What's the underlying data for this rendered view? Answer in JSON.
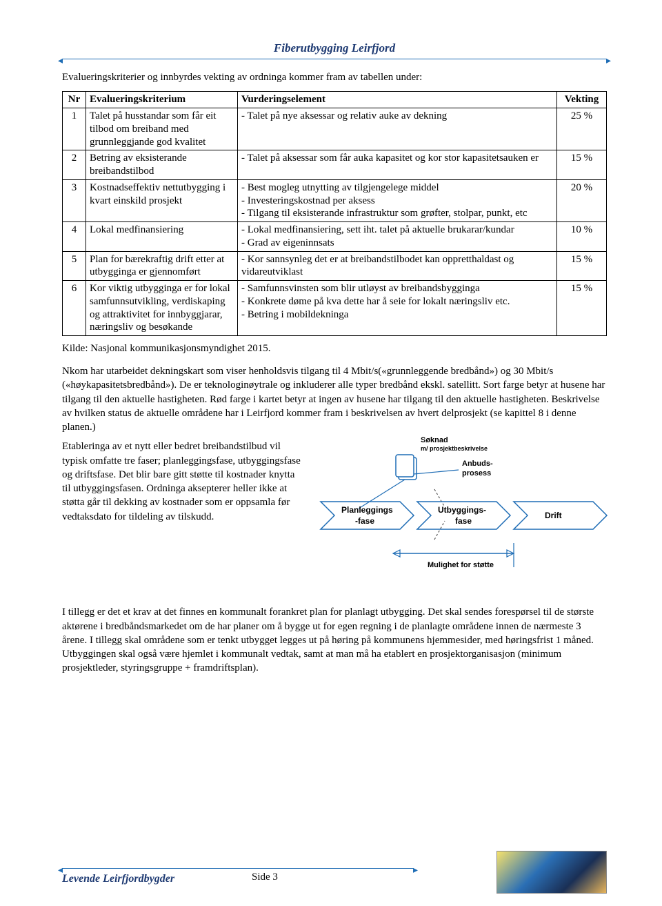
{
  "header": {
    "title": "Fiberutbygging Leirfjord"
  },
  "intro": "Evalueringskriterier og innbyrdes vekting av ordninga kommer fram av tabellen under:",
  "table": {
    "headers": {
      "nr": "Nr",
      "kri": "Evalueringskriterium",
      "vur": "Vurderingselement",
      "vek": "Vekting"
    },
    "rows": [
      {
        "nr": "1",
        "kri": "Talet på husstandar som får eit tilbod om breiband med grunnleggjande god kvalitet",
        "vur": "- Talet på nye aksessar og relativ auke av dekning",
        "vek": "25 %"
      },
      {
        "nr": "2",
        "kri": "Betring av eksisterande breibandstilbod",
        "vur": "- Talet på aksessar som får auka kapasitet og kor stor kapasitetsauken er",
        "vek": "15 %"
      },
      {
        "nr": "3",
        "kri": "Kostnadseffektiv nettutbygging i kvart einskild prosjekt",
        "vur": "- Best mogleg utnytting av tilgjengelege middel\n- Investeringskostnad per aksess\n- Tilgang til eksisterande infrastruktur som grøfter, stolpar, punkt, etc",
        "vek": "20 %"
      },
      {
        "nr": "4",
        "kri": "Lokal medfinansiering",
        "vur": "- Lokal medfinansiering, sett iht. talet på aktuelle brukarar/kundar\n- Grad av eigeninnsats",
        "vek": "10 %"
      },
      {
        "nr": "5",
        "kri": "Plan for bærekraftig drift etter at utbygginga er gjennomført",
        "vur": "- Kor sannsynleg det er at breibandstilbodet kan oppretthaldast og vidareutviklast",
        "vek": "15 %"
      },
      {
        "nr": "6",
        "kri": "Kor viktig utbygginga er for lokal samfunnsutvikling, verdiskaping og attraktivitet for innbyggjarar, næringsliv og besøkande",
        "vur": "- Samfunnsvinsten som blir utløyst av breibandsbygginga\n- Konkrete døme på kva dette har å seie for lokalt næringsliv etc.\n- Betring i mobildekninga",
        "vek": "15 %"
      }
    ]
  },
  "kilde": "Kilde: Nasjonal kommunikasjonsmyndighet 2015.",
  "para1": "Nkom har utarbeidet dekningskart som viser henholdsvis tilgang til 4 Mbit/s(«grunnleggende bredbånd») og 30 Mbit/s («høykapasitetsbredbånd»). De er teknologinøytrale og inkluderer alle typer bredbånd ekskl. satellitt. Sort farge betyr at husene har tilgang til den aktuelle hastigheten. Rød farge i kartet betyr at ingen av husene har tilgang til den aktuelle hastigheten. Beskrivelse av hvilken status de aktuelle områdene har i Leirfjord kommer fram i beskrivelsen av hvert delprosjekt (se kapittel 8 i denne planen.)",
  "para_left": "Etableringa av et nytt eller bedret breibandstilbud vil typisk omfatte tre faser; planleggingsfase, utbyggingsfase og driftsfase. Det blir bare gitt støtte til kostnader knytta til utbyggingsfasen. Ordninga aksepterer heller ikke at støtta går til dekking av kostnader som er oppsamla før vedtaksdato for tildeling av tilskudd.",
  "diagram": {
    "labels": {
      "soknad": "Søknad",
      "mpros": "m/ prosjektbeskrivelse",
      "anbud": "Anbuds-\nprosess",
      "plan": "Planleggings\n-fase",
      "utbyg": "Utbyggings-\nfase",
      "drift": "Drift",
      "mulighet": "Mulighet for støtte"
    },
    "colors": {
      "outline": "#1f6db5",
      "text": "#000000",
      "faint": "#8aa9cc"
    }
  },
  "para2": "I tillegg er det et krav at det finnes en kommunalt forankret plan for planlagt utbygging. Det skal sendes forespørsel til de største aktørene i bredbåndsmarkedet om de har planer om å bygge ut for egen regning i de planlagte områdene innen de nærmeste 3 årene. I tillegg skal områdene som er tenkt utbygget legges ut på høring på kommunens hjemmesider, med høringsfrist 1 måned. Utbyggingen skal også være hjemlet i kommunalt vedtak, samt at man må ha etablert en prosjektorganisasjon (minimum prosjektleder, styringsgruppe + framdriftsplan).",
  "footer": {
    "left": "Levende Leirfjordbygder",
    "side": "Side 3"
  }
}
